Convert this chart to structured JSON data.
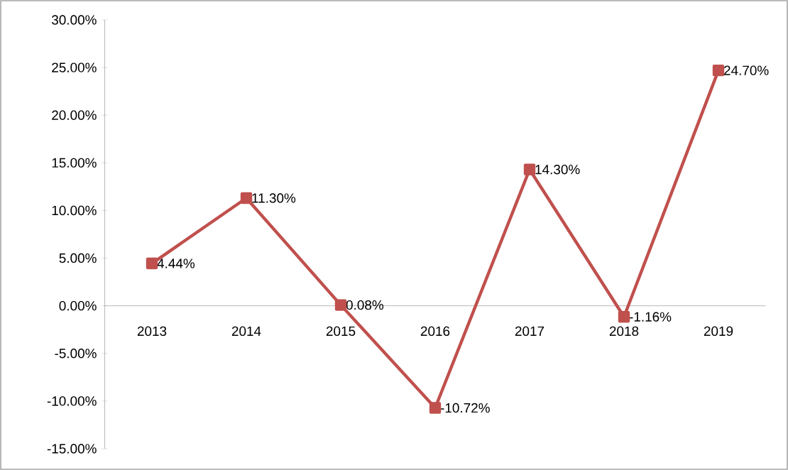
{
  "chart_data": {
    "type": "line",
    "categories": [
      "2013",
      "2014",
      "2015",
      "2016",
      "2017",
      "2018",
      "2019"
    ],
    "values": [
      4.44,
      11.3,
      0.08,
      -10.72,
      14.3,
      -1.16,
      24.7
    ],
    "value_labels": [
      "4.44%",
      "11.30%",
      "0.08%",
      "-10.72%",
      "14.30%",
      "-1.16%",
      "24.70%"
    ],
    "color": "#c0504d",
    "marker": "square",
    "line_style": "solid",
    "ylim": [
      -15,
      30
    ],
    "yticks": [
      {
        "value": -15,
        "label": "-15.00%"
      },
      {
        "value": -10,
        "label": "-10.00%"
      },
      {
        "value": -5,
        "label": "-5.00%"
      },
      {
        "value": 0,
        "label": "0.00%"
      },
      {
        "value": 5,
        "label": "5.00%"
      },
      {
        "value": 10,
        "label": "10.00%"
      },
      {
        "value": 15,
        "label": "15.00%"
      },
      {
        "value": 20,
        "label": "20.00%"
      },
      {
        "value": 25,
        "label": "25.00%"
      },
      {
        "value": 30,
        "label": "30.00%"
      }
    ]
  }
}
